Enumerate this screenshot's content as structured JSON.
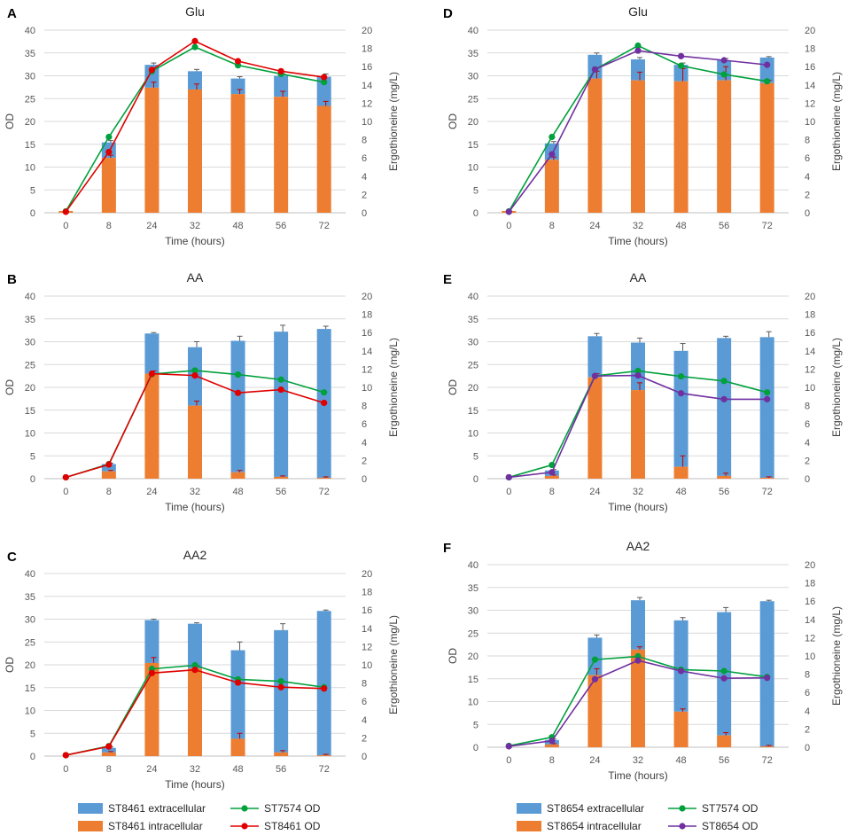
{
  "figure": {
    "colors": {
      "extracellular": "#5b9bd5",
      "intracellular": "#ed7d31",
      "st7574": "#00a03c",
      "st8461": "#e00000",
      "st8654": "#7030a0",
      "grid": "#d9d9d9",
      "axis": "#bfbfbf"
    },
    "legends": [
      {
        "bar1": "ST8461 extracellular",
        "bar2": "ST8461 intracellular",
        "line1": "ST7574 OD",
        "line2": "ST8461 OD"
      },
      {
        "bar1": "ST8654 extracellular",
        "bar2": "ST8654 intracellular",
        "line1": "ST7574 OD",
        "line2": "ST8654 OD"
      }
    ]
  },
  "chart_data": [
    {
      "panel": "A",
      "type": "bar",
      "title": "Glu",
      "categories": [
        "0",
        "8",
        "24",
        "32",
        "48",
        "56",
        "72"
      ],
      "xlabel": "Time (hours)",
      "ylabel": "OD",
      "y2label": "Ergothioneine (mg/L)",
      "ylim": [
        0,
        40
      ],
      "yticks": [
        "0",
        "5",
        "10",
        "15",
        "20",
        "25",
        "30",
        "35",
        "40"
      ],
      "y2lim": [
        0,
        20
      ],
      "y2ticks": [
        "0",
        "2",
        "4",
        "6",
        "8",
        "10",
        "12",
        "14",
        "16",
        "18",
        "20"
      ],
      "bar_intracellular": [
        0.2,
        6.0,
        13.7,
        13.5,
        13.0,
        12.7,
        11.7
      ],
      "bar_extracellular": [
        0,
        1.7,
        2.5,
        2.0,
        1.7,
        2.3,
        3.2
      ],
      "intra_err": [
        0,
        0.3,
        0.6,
        0.6,
        0.5,
        0.6,
        0.5
      ],
      "total_err": [
        0,
        0.2,
        0.2,
        0.2,
        0.2,
        0.2,
        0.3
      ],
      "line1_name": "ST7574 OD",
      "line1": [
        0.3,
        16.6,
        31.0,
        36.3,
        32.3,
        30.4,
        28.6
      ],
      "line2_name": "ST8461 OD",
      "line2": [
        0.2,
        13.3,
        31.3,
        37.6,
        33.2,
        31.0,
        29.7
      ]
    },
    {
      "panel": "B",
      "type": "bar",
      "title": "AA",
      "categories": [
        "0",
        "8",
        "24",
        "32",
        "48",
        "56",
        "72"
      ],
      "xlabel": "Time (hours)",
      "ylabel": "OD",
      "y2label": "Ergothioneine (mg/L)",
      "ylim": [
        0,
        40
      ],
      "yticks": [
        "0",
        "5",
        "10",
        "15",
        "20",
        "25",
        "30",
        "35",
        "40"
      ],
      "y2lim": [
        0,
        20
      ],
      "y2ticks": [
        "0",
        "2",
        "4",
        "6",
        "8",
        "10",
        "12",
        "14",
        "16",
        "18",
        "20"
      ],
      "bar_intracellular": [
        0,
        0.8,
        11.5,
        8.0,
        0.7,
        0.2,
        0.1
      ],
      "bar_extracellular": [
        0,
        0.8,
        4.4,
        6.4,
        14.4,
        15.9,
        16.3
      ],
      "intra_err": [
        0,
        0.1,
        0.3,
        0.5,
        0.2,
        0.1,
        0.1
      ],
      "total_err": [
        0,
        0.1,
        0.1,
        0.6,
        0.5,
        0.7,
        0.3
      ],
      "line1_name": "ST7574 OD",
      "line1": [
        0.3,
        3.2,
        22.9,
        23.7,
        22.8,
        21.7,
        18.9
      ],
      "line2_name": "ST8461 OD",
      "line2": [
        0.3,
        3.1,
        23.0,
        22.6,
        18.8,
        19.5,
        16.6
      ]
    },
    {
      "panel": "C",
      "type": "bar",
      "title": "AA2",
      "categories": [
        "0",
        "8",
        "24",
        "32",
        "48",
        "56",
        "72"
      ],
      "xlabel": "Time (hours)",
      "ylabel": "OD",
      "y2label": "Ergothioneine (mg/L)",
      "ylim": [
        0,
        40
      ],
      "yticks": [
        "0",
        "5",
        "10",
        "15",
        "20",
        "25",
        "30",
        "35",
        "40"
      ],
      "y2lim": [
        0,
        20
      ],
      "y2ticks": [
        "0",
        "2",
        "4",
        "6",
        "8",
        "10",
        "12",
        "14",
        "16",
        "18",
        "20"
      ],
      "bar_intracellular": [
        0,
        0.4,
        10.2,
        9.6,
        1.9,
        0.4,
        0.1
      ],
      "bar_extracellular": [
        0,
        0.5,
        4.7,
        4.9,
        9.7,
        13.4,
        15.8
      ],
      "intra_err": [
        0,
        0.1,
        0.6,
        0.3,
        0.6,
        0.2,
        0.1
      ],
      "total_err": [
        0,
        0.1,
        0.1,
        0.1,
        0.9,
        0.7,
        0.1
      ],
      "line1_name": "ST7574 OD",
      "line1": [
        0.2,
        2.2,
        19.1,
        19.9,
        16.8,
        16.4,
        15.1
      ],
      "line2_name": "ST8461 OD",
      "line2": [
        0.2,
        2.1,
        18.2,
        18.9,
        16.1,
        15.1,
        14.8
      ]
    },
    {
      "panel": "D",
      "type": "bar",
      "title": "Glu",
      "categories": [
        "0",
        "8",
        "24",
        "32",
        "48",
        "56",
        "72"
      ],
      "xlabel": "Time (hours)",
      "ylabel": "OD",
      "y2label": "Ergothioneine (mg/L)",
      "ylim": [
        0,
        40
      ],
      "yticks": [
        "0",
        "5",
        "10",
        "15",
        "20",
        "25",
        "30",
        "35",
        "40"
      ],
      "y2lim": [
        0,
        20
      ],
      "y2ticks": [
        "0",
        "2",
        "4",
        "6",
        "8",
        "10",
        "12",
        "14",
        "16",
        "18",
        "20"
      ],
      "bar_intracellular": [
        0.2,
        5.8,
        14.7,
        14.5,
        14.4,
        14.5,
        14.2
      ],
      "bar_extracellular": [
        0,
        1.8,
        2.6,
        2.3,
        1.8,
        2.2,
        2.8
      ],
      "intra_err": [
        0,
        0.3,
        0.8,
        0.9,
        1.4,
        1.5,
        0.3
      ],
      "total_err": [
        0,
        0.2,
        0.2,
        0.2,
        0.2,
        0.2,
        0.1
      ],
      "line1_name": "ST7574 OD",
      "line1": [
        0.3,
        16.6,
        31.4,
        36.6,
        32.2,
        30.3,
        28.8
      ],
      "line2_name": "ST8654 OD",
      "line2": [
        0.2,
        12.8,
        31.4,
        35.5,
        34.3,
        33.4,
        32.4
      ]
    },
    {
      "panel": "E",
      "type": "bar",
      "title": "AA",
      "categories": [
        "0",
        "8",
        "24",
        "32",
        "48",
        "56",
        "72"
      ],
      "xlabel": "Time (hours)",
      "ylabel": "OD",
      "y2label": "Ergothioneine (mg/L)",
      "ylim": [
        0,
        40
      ],
      "yticks": [
        "0",
        "5",
        "10",
        "15",
        "20",
        "25",
        "30",
        "35",
        "40"
      ],
      "y2lim": [
        0,
        20
      ],
      "y2ticks": [
        "0",
        "2",
        "4",
        "6",
        "8",
        "10",
        "12",
        "14",
        "16",
        "18",
        "20"
      ],
      "bar_intracellular": [
        0,
        0.3,
        11.1,
        9.7,
        1.3,
        0.3,
        0.1
      ],
      "bar_extracellular": [
        0,
        0.6,
        4.5,
        5.2,
        12.7,
        15.1,
        15.4
      ],
      "intra_err": [
        0,
        0.1,
        0.4,
        0.8,
        1.2,
        0.3,
        0.1
      ],
      "total_err": [
        0,
        0.1,
        0.3,
        0.5,
        0.8,
        0.2,
        0.6
      ],
      "line1_name": "ST7574 OD",
      "line1": [
        0.3,
        3.0,
        22.5,
        23.6,
        22.4,
        21.4,
        18.9
      ],
      "line2_name": "ST8654 OD",
      "line2": [
        0.3,
        1.4,
        22.5,
        22.6,
        18.7,
        17.4,
        17.4
      ]
    },
    {
      "panel": "F",
      "type": "bar",
      "title": "AA2",
      "categories": [
        "0",
        "8",
        "24",
        "32",
        "48",
        "56",
        "72"
      ],
      "xlabel": "Time (hours)",
      "ylabel": "OD",
      "y2label": "Ergothioneine (mg/L)",
      "ylim": [
        0,
        40
      ],
      "yticks": [
        "0",
        "5",
        "10",
        "15",
        "20",
        "25",
        "30",
        "35",
        "40"
      ],
      "y2lim": [
        0,
        20
      ],
      "y2ticks": [
        "0",
        "2",
        "4",
        "6",
        "8",
        "10",
        "12",
        "14",
        "16",
        "18",
        "20"
      ],
      "bar_intracellular": [
        0,
        0.3,
        7.9,
        10.7,
        3.9,
        1.3,
        0.1
      ],
      "bar_extracellular": [
        0,
        0.5,
        4.1,
        5.4,
        10.0,
        13.5,
        15.9
      ],
      "intra_err": [
        0,
        0.1,
        0.7,
        0.3,
        0.3,
        0.3,
        0.1
      ],
      "total_err": [
        0,
        0.1,
        0.3,
        0.3,
        0.3,
        0.5,
        0.1
      ],
      "line1_name": "ST7574 OD",
      "line1": [
        0.3,
        2.2,
        19.2,
        19.9,
        17.0,
        16.7,
        15.4
      ],
      "line2_name": "ST8654 OD",
      "line2": [
        0.2,
        1.4,
        14.9,
        19.0,
        16.7,
        15.1,
        15.2
      ]
    }
  ]
}
